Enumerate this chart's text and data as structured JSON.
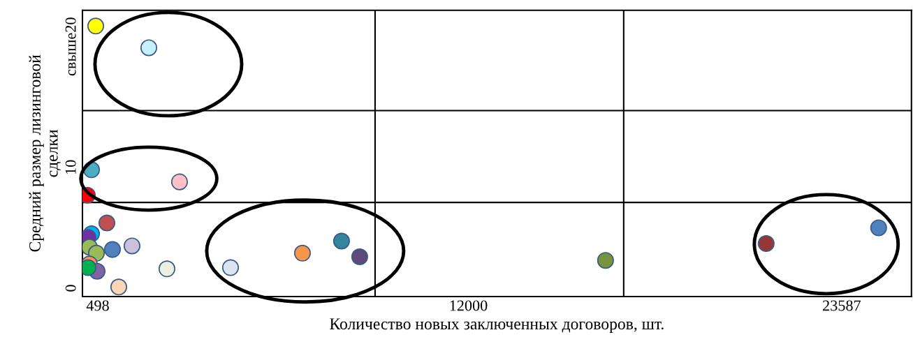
{
  "chart_data": {
    "type": "scatter",
    "xlabel": "Количество новых заключенных договоров, шт.",
    "ylabel": "Средний размер лизинговой\nсделки",
    "xlim": [
      21,
      25753
    ],
    "ylim": [
      -0.69,
      23.0
    ],
    "xticks": [
      498,
      12000,
      23587
    ],
    "yticks": [
      0,
      10,
      {
        "value": 20,
        "label": "свыше20"
      }
    ],
    "grid": false,
    "marker": "circle",
    "x": [
      433,
      2081,
      303,
      3034,
      173,
      780,
      303,
      194,
      1560,
      953,
      238,
      455,
      238,
      476,
      194,
      2644,
      1148,
      4617,
      6850,
      8063,
      8627,
      16258,
      21244,
      24734
    ],
    "values": [
      21.7,
      19.9,
      9.8,
      8.8,
      7.7,
      5.4,
      4.5,
      4.2,
      3.5,
      3.2,
      3.4,
      2.9,
      2.0,
      1.4,
      1.7,
      1.6,
      0.1,
      1.7,
      2.9,
      3.9,
      2.6,
      2.3,
      3.7,
      5.0
    ],
    "colors": [
      "#ffff00",
      "#c6efff",
      "#4bacc6",
      "#ffc0c6",
      "#ff0000",
      "#c0504d",
      "#00b0f0",
      "#7030a0",
      "#ccc0da",
      "#4f81bd",
      "#9bbb59",
      "#9bbb59",
      "#f79646",
      "#8064a2",
      "#00b050",
      "#ebf1de",
      "#fcd5b5",
      "#dbe5f1",
      "#f79646",
      "#31859c",
      "#5f497a",
      "#77933c",
      "#953735",
      "#4f81bd"
    ],
    "ref_lines": [
      {
        "axis": "x",
        "value": 9104,
        "color": "#000000"
      },
      {
        "axis": "x",
        "value": 16821,
        "color": "#000000"
      },
      {
        "axis": "y",
        "value": 7.1,
        "color": "#000000"
      },
      {
        "axis": "y",
        "value": 14.7,
        "color": "#000000"
      }
    ]
  }
}
